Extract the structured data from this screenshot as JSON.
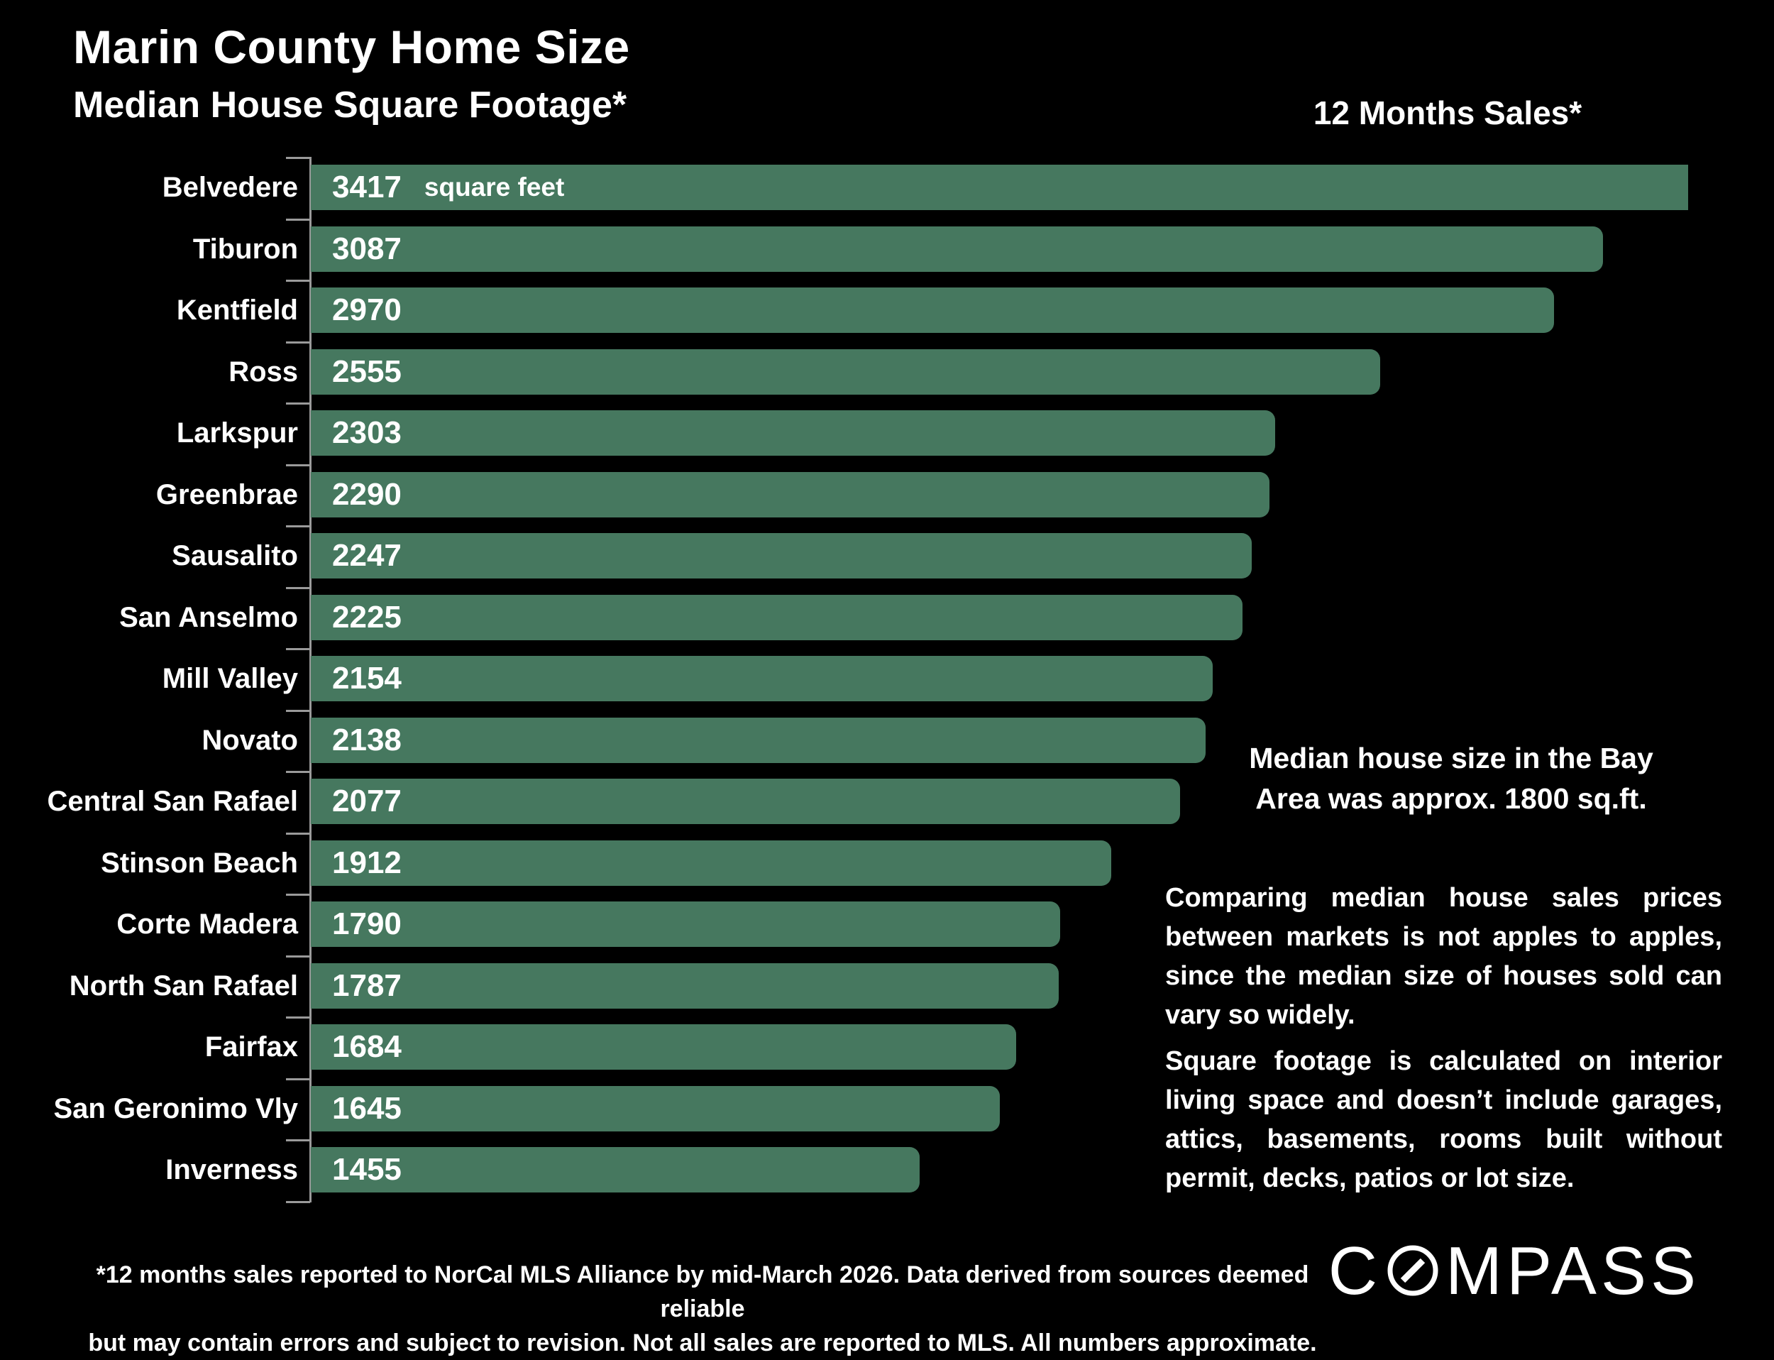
{
  "header": {
    "title": "Marin County Home Size",
    "subtitle": "Median House Square Footage*",
    "sales_label": "12 Months Sales*"
  },
  "chart_data": {
    "type": "bar",
    "orientation": "horizontal",
    "title": "Marin County Home Size — Median House Square Footage",
    "unit_label": "square feet",
    "categories": [
      "Belvedere",
      "Tiburon",
      "Kentfield",
      "Ross",
      "Larkspur",
      "Greenbrae",
      "Sausalito",
      "San Anselmo",
      "Mill Valley",
      "Novato",
      "Central San Rafael",
      "Stinson Beach",
      "Corte Madera",
      "North San Rafael",
      "Fairfax",
      "San Geronimo Vly",
      "Inverness"
    ],
    "values": [
      3417,
      3087,
      2970,
      2555,
      2303,
      2290,
      2247,
      2225,
      2154,
      2138,
      2077,
      1912,
      1790,
      1787,
      1684,
      1645,
      1455
    ],
    "xlim": [
      0,
      3290
    ],
    "grid": false,
    "value_labels": "inside-left",
    "bar_color": "#46785f",
    "axis_color": "#9a9a9a",
    "background_color": "#000000",
    "text_color": "#ffffff"
  },
  "annotations": {
    "bay_area_note": "Median house size in the Bay Area was approx. 1800 sq.ft.",
    "comparison": "Comparing median house sales prices between markets is not apples to apples, since the median size of houses sold can vary so widely.",
    "sqft_definition": "Square footage is calculated on interior living space and doesn’t include garages, attics, basements, rooms built without permit, decks, patios or lot size."
  },
  "footer": {
    "disclaimer_line1": "*12 months sales reported to NorCal MLS Alliance by mid-March 2026. Data derived from sources deemed reliable",
    "disclaimer_line2": "but may contain errors and subject to revision. Not all sales are reported to MLS. All numbers approximate."
  },
  "logo": {
    "brand": "COMPASS",
    "prefix": "C",
    "suffix": "MPASS"
  }
}
